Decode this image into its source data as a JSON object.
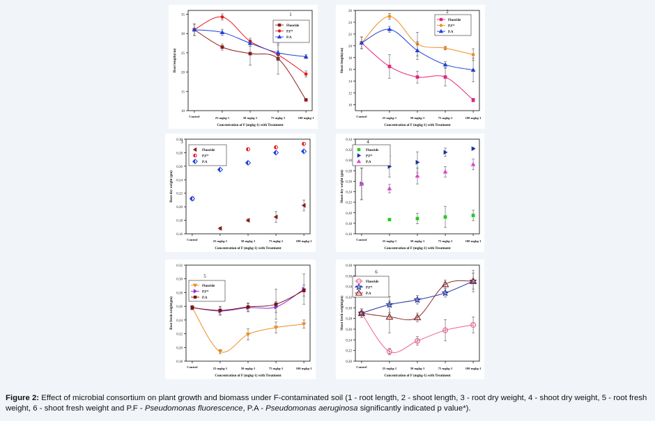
{
  "caption": {
    "label": "Figure 2:",
    "text_a": " Effect of microbial consortium on plant growth and biomass under F-contaminated soil (1 - root length, 2 - shoot length, 3 - root dry weight, 4 - shoot dry weight, 5 - root fresh weight, 6 - shoot fresh weight and P.F - ",
    "pf_name": "Pseudomonas fluorescence",
    "text_b": ", P.A - ",
    "pa_name": "Pseudomonas aeruginosa",
    "text_c": " significantly indicated p value*)."
  },
  "colors": {
    "fluoride_1": "#8b1a1a",
    "pf_1": "#e41a1c",
    "pa_1": "#1e3fd8",
    "fluoride_2": "#e8237a",
    "pf_2": "#f28c1e",
    "pa_2": "#1e3fd8",
    "fluoride_4": "#22cc22",
    "pf_4": "#1e2fa0",
    "pa_4": "#e040d0",
    "fluoride_5": "#f28c1e",
    "pf_5": "#8a2be2",
    "pa_5": "#7a1212",
    "fluoride_6": "#f06090",
    "pf_6": "#1e2fa0",
    "pa_6": "#8b2a2a"
  },
  "chart_data": [
    {
      "type": "line",
      "panel_number": "1",
      "categories": [
        "Control",
        "25 mgkg-1",
        "50 mgkg-1",
        "75 mgkg-1",
        "100 mgkg-1"
      ],
      "xlabel": "Concentration of F (mgkg-1) with Treatment",
      "ylabel": "Root length(cm)",
      "ylim": [
        10,
        36
      ],
      "yticks": [
        10,
        15,
        20,
        25,
        30,
        35
      ],
      "legend_position": "top-right",
      "series": [
        {
          "name": "Fluoride",
          "values": [
            31,
            26.5,
            24.8,
            23.5,
            12.8
          ],
          "errors": [
            1.5,
            0.8,
            3.0,
            4.0,
            0.3
          ],
          "marker": "square"
        },
        {
          "name": "P.F*",
          "values": [
            31,
            34.3,
            28,
            24.5,
            19.5
          ],
          "errors": [
            1.5,
            0.8,
            0.8,
            1.0,
            0.8
          ],
          "marker": "circle"
        },
        {
          "name": "P.A",
          "values": [
            31,
            30.3,
            27.5,
            25,
            24
          ],
          "errors": [
            1.5,
            0.8,
            0.8,
            2.0,
            0.5
          ],
          "marker": "triangle-up"
        }
      ]
    },
    {
      "type": "line",
      "panel_number": "2",
      "categories": [
        "Control",
        "25 mgkg-1",
        "50 mgkg-1",
        "75 mgkg-1",
        "100 mgkg-1"
      ],
      "xlabel": "Concentration of F (mgkg-1) with Treatment",
      "ylabel": "Shoot length(cm)",
      "ylim": [
        9,
        26
      ],
      "yticks": [
        10,
        12,
        14,
        16,
        18,
        20,
        22,
        24,
        26
      ],
      "legend_position": "top-right",
      "series": [
        {
          "name": "Fluoride",
          "values": [
            20.5,
            16.5,
            14.7,
            14.7,
            10.8
          ],
          "errors": [
            1.0,
            2.0,
            1.0,
            1.5,
            0.3
          ],
          "marker": "square"
        },
        {
          "name": "P.F*",
          "values": [
            20.5,
            25,
            20.3,
            19.6,
            18.5
          ],
          "errors": [
            1.0,
            0.5,
            2.0,
            0.3,
            1.0
          ],
          "marker": "circle"
        },
        {
          "name": "P.A",
          "values": [
            20.5,
            22.8,
            19.2,
            16.8,
            15.9
          ],
          "errors": [
            1.0,
            0.5,
            1.5,
            0.5,
            2.0
          ],
          "marker": "triangle-up"
        }
      ]
    },
    {
      "type": "scatter",
      "panel_number": "3",
      "categories": [
        "Control",
        "25 mgkg-1",
        "50 mgkg-1",
        "75 mgkg-1",
        "100 mgkg-1"
      ],
      "xlabel": "Concentration of F (mgkg-1) with Treatment",
      "ylabel": "Root dry weight (gm)",
      "ylim": [
        0.16,
        0.3
      ],
      "yticks": [
        0.16,
        0.18,
        0.2,
        0.22,
        0.24,
        0.26,
        0.28,
        0.3
      ],
      "legend_position": "top-left",
      "series": [
        {
          "name": "Fluoride",
          "values": [
            0.212,
            0.168,
            0.18,
            0.185,
            0.202
          ],
          "errors": [
            0.002,
            0.002,
            0.002,
            0.008,
            0.008
          ],
          "marker": "triangle-left"
        },
        {
          "name": "P.F*",
          "values": [
            0.212,
            0.28,
            0.285,
            0.288,
            0.293
          ],
          "errors": [
            0.002,
            0.002,
            0.002,
            0.002,
            0.002
          ],
          "marker": "half-circle"
        },
        {
          "name": "P.A",
          "values": [
            0.212,
            0.255,
            0.265,
            0.28,
            0.282
          ],
          "errors": [
            0.002,
            0.002,
            0.002,
            0.002,
            0.002
          ],
          "marker": "half-diamond"
        }
      ]
    },
    {
      "type": "scatter",
      "panel_number": "4",
      "categories": [
        "Control",
        "25 mgkg-1",
        "50 mgkg-1",
        "75 mgkg-1",
        "100 mgkg-1"
      ],
      "xlabel": "Concentration of F (mgkg-1) with Treatment",
      "ylabel": "Shoot dry weight (gm)",
      "ylim": [
        0.16,
        0.34
      ],
      "yticks": [
        0.16,
        0.18,
        0.2,
        0.22,
        0.24,
        0.26,
        0.28,
        0.3,
        0.32,
        0.34
      ],
      "legend_position": "top-left",
      "series": [
        {
          "name": "Fluoride",
          "values": [
            0.255,
            0.187,
            0.189,
            0.192,
            0.195
          ],
          "errors": [
            0.03,
            0.002,
            0.01,
            0.02,
            0.01
          ],
          "marker": "square"
        },
        {
          "name": "P.F*",
          "values": [
            0.255,
            0.288,
            0.296,
            0.315,
            0.322
          ],
          "errors": [
            0.03,
            0.02,
            0.02,
            0.008,
            0.002
          ],
          "marker": "triangle-right"
        },
        {
          "name": "P.A",
          "values": [
            0.255,
            0.246,
            0.27,
            0.278,
            0.292
          ],
          "errors": [
            0.03,
            0.008,
            0.015,
            0.01,
            0.01
          ],
          "marker": "triangle-up"
        }
      ]
    },
    {
      "type": "line",
      "panel_number": "5",
      "categories": [
        "Control",
        "25 mgkg-1",
        "50 mgkg-1",
        "75 mgkg-1",
        "100 mgkg-1"
      ],
      "xlabel": "Concentration of F (mgkg-1) with Treatment",
      "ylabel": "Root fresh weight(gm)",
      "ylim": [
        0.18,
        0.32
      ],
      "yticks": [
        0.18,
        0.2,
        0.22,
        0.24,
        0.26,
        0.28,
        0.3,
        0.32
      ],
      "legend_position": "top-left",
      "series": [
        {
          "name": "Fluoride",
          "values": [
            0.258,
            0.194,
            0.219,
            0.229,
            0.234
          ],
          "errors": [
            0.003,
            0.003,
            0.008,
            0.008,
            0.006
          ],
          "marker": "triangle-down"
        },
        {
          "name": "P.F*",
          "values": [
            0.258,
            0.253,
            0.258,
            0.259,
            0.285
          ],
          "errors": [
            0.003,
            0.006,
            0.006,
            0.008,
            0.022
          ],
          "marker": "triangle-right"
        },
        {
          "name": "P.A",
          "values": [
            0.258,
            0.254,
            0.259,
            0.263,
            0.283
          ],
          "errors": [
            0.003,
            0.006,
            0.006,
            0.022,
            0.008
          ],
          "marker": "square"
        }
      ]
    },
    {
      "type": "line",
      "panel_number": "6",
      "categories": [
        "Control",
        "25 mgkg-1",
        "50 mgkg-1",
        "75 mgkg-1",
        "100 mgkg-1"
      ],
      "xlabel": "Concentration of F (mgkg-1) with Treatment",
      "ylabel": "Shoot fresh weight(gm)",
      "ylim": [
        0.2,
        0.38
      ],
      "yticks": [
        0.2,
        0.22,
        0.24,
        0.26,
        0.28,
        0.3,
        0.32,
        0.34,
        0.36,
        0.38
      ],
      "legend_position": "top-left",
      "series": [
        {
          "name": "Fluoride",
          "values": [
            0.29,
            0.218,
            0.238,
            0.258,
            0.268
          ],
          "errors": [
            0.008,
            0.006,
            0.008,
            0.02,
            0.015
          ],
          "marker": "circle-open"
        },
        {
          "name": "P.F*",
          "values": [
            0.29,
            0.306,
            0.315,
            0.328,
            0.35
          ],
          "errors": [
            0.008,
            0.015,
            0.008,
            0.008,
            0.02
          ],
          "marker": "star-open"
        },
        {
          "name": "P.A",
          "values": [
            0.29,
            0.283,
            0.282,
            0.344,
            0.35
          ],
          "errors": [
            0.008,
            0.03,
            0.008,
            0.008,
            0.015
          ],
          "marker": "triangle-open"
        }
      ]
    }
  ]
}
